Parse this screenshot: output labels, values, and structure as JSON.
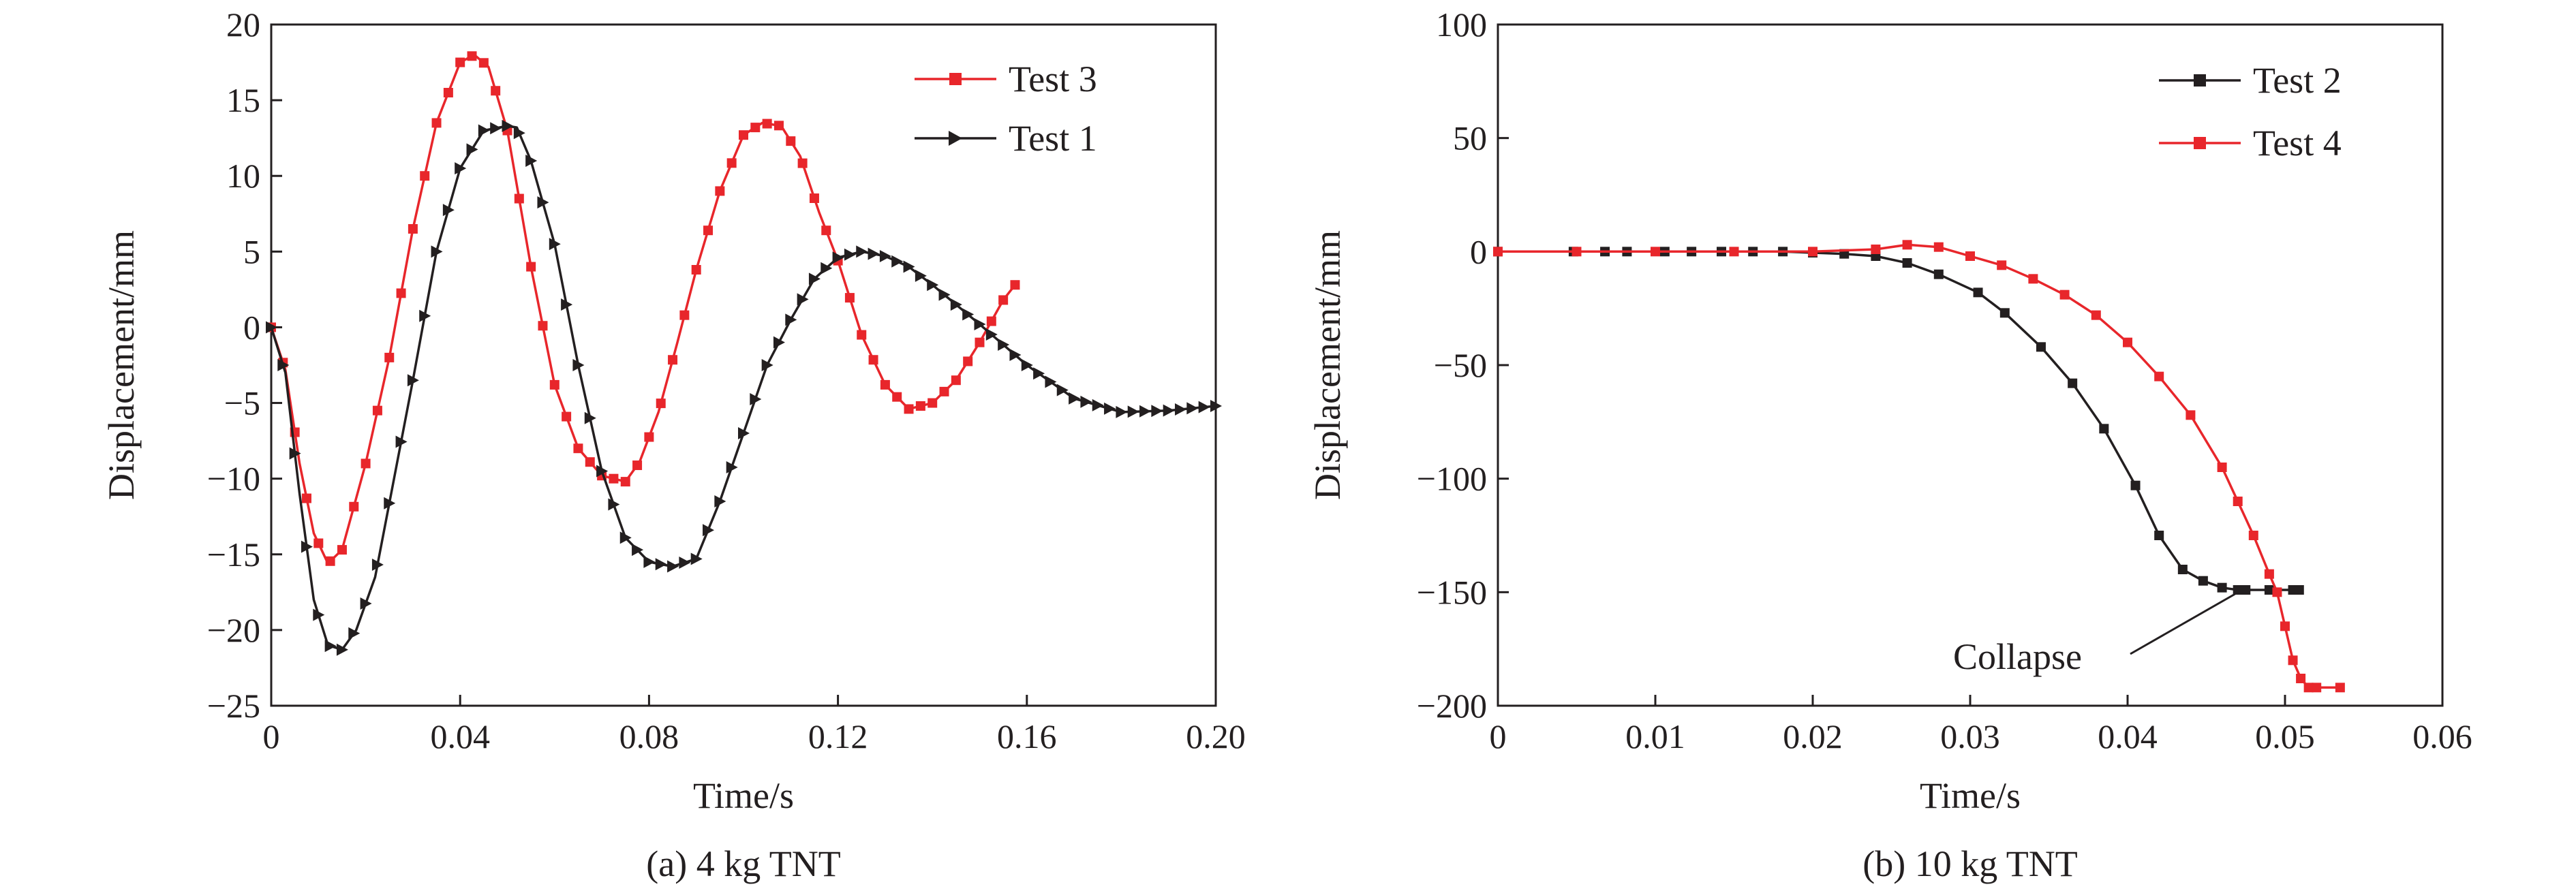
{
  "chart_data": [
    {
      "type": "line",
      "title": "",
      "caption": "(a) 4 kg TNT",
      "xlabel": "Time/s",
      "ylabel": "Displacement/mm",
      "xlim": [
        0,
        0.2
      ],
      "ylim": [
        -25,
        20
      ],
      "x_ticks": [
        0,
        0.04,
        0.08,
        0.12,
        0.16,
        0.2
      ],
      "x_tick_labels": [
        "0",
        "0.04",
        "0.08",
        "0.12",
        "0.16",
        "0.20"
      ],
      "y_ticks": [
        20,
        15,
        10,
        5,
        0,
        -5,
        -10,
        -15,
        -20,
        -25
      ],
      "y_tick_labels": [
        "20",
        "15",
        "10",
        "5",
        "0",
        "−5",
        "−10",
        "−15",
        "−20",
        "−25"
      ],
      "grid": false,
      "legend_position": "top-right",
      "series": [
        {
          "name": "Test 3",
          "color": "#e8262b",
          "marker": "square",
          "x": [
            0,
            0.003,
            0.006,
            0.009,
            0.012,
            0.015,
            0.02,
            0.025,
            0.03,
            0.035,
            0.04,
            0.043,
            0.046,
            0.05,
            0.055,
            0.06,
            0.065,
            0.07,
            0.075,
            0.078,
            0.082,
            0.086,
            0.09,
            0.095,
            0.1,
            0.104,
            0.108,
            0.112,
            0.116,
            0.12,
            0.125,
            0.13,
            0.135,
            0.14,
            0.145,
            0.15,
            0.155,
            0.158
          ],
          "y": [
            0,
            -2.8,
            -9,
            -13.6,
            -15.6,
            -14.7,
            -9,
            -2,
            6.5,
            13.5,
            17.5,
            18,
            17.2,
            13,
            4,
            -3.8,
            -8,
            -9.8,
            -10.2,
            -8.9,
            -5.6,
            -1,
            3.8,
            9,
            12.7,
            13.5,
            13.3,
            11.3,
            7.6,
            4.4,
            -0.5,
            -3.8,
            -5.4,
            -5,
            -3.5,
            -1,
            1.8,
            3
          ]
        },
        {
          "name": "Test 1",
          "color": "#231f20",
          "marker": "triangle-right",
          "x": [
            0,
            0.003,
            0.006,
            0.009,
            0.012,
            0.015,
            0.018,
            0.022,
            0.026,
            0.03,
            0.035,
            0.04,
            0.045,
            0.05,
            0.052,
            0.055,
            0.06,
            0.065,
            0.07,
            0.075,
            0.08,
            0.085,
            0.09,
            0.095,
            0.1,
            0.105,
            0.11,
            0.115,
            0.12,
            0.125,
            0.13,
            0.135,
            0.14,
            0.15,
            0.16,
            0.17,
            0.18,
            0.19,
            0.2
          ],
          "y": [
            0,
            -3,
            -11,
            -18,
            -21,
            -21.3,
            -20,
            -16.5,
            -10,
            -3.5,
            5,
            10.5,
            13,
            13.3,
            13.2,
            11,
            5.5,
            -2.5,
            -9.5,
            -13.9,
            -15.5,
            -15.8,
            -15.3,
            -11.5,
            -7,
            -2.5,
            0.5,
            3.2,
            4.6,
            5,
            4.7,
            4,
            2.8,
            0.2,
            -2.5,
            -4.7,
            -5.6,
            -5.5,
            -5.2
          ]
        }
      ]
    },
    {
      "type": "line",
      "title": "",
      "caption": "(b) 10 kg TNT",
      "xlabel": "Time/s",
      "ylabel": "Displacement/mm",
      "xlim": [
        0,
        0.06
      ],
      "ylim": [
        -200,
        100
      ],
      "x_ticks": [
        0,
        0.01,
        0.02,
        0.03,
        0.04,
        0.05,
        0.06
      ],
      "x_tick_labels": [
        "0",
        "0.01",
        "0.02",
        "0.03",
        "0.04",
        "0.05",
        "0.06"
      ],
      "y_ticks": [
        100,
        50,
        0,
        -50,
        -100,
        -150,
        -200
      ],
      "y_tick_labels": [
        "100",
        "50",
        "0",
        "−50",
        "−100",
        "−150",
        "−200"
      ],
      "grid": false,
      "legend_position": "top-right",
      "annotations": [
        {
          "text": "Collapse",
          "target_x": 0.047,
          "target_y": -149
        }
      ],
      "series": [
        {
          "name": "Test 2",
          "color": "#231f20",
          "marker": "square",
          "x": [
            0,
            0.0048,
            0.0068,
            0.0082,
            0.0106,
            0.0123,
            0.0142,
            0.0162,
            0.0181,
            0.02,
            0.022,
            0.024,
            0.026,
            0.028,
            0.0305,
            0.0322,
            0.0345,
            0.0365,
            0.0385,
            0.0405,
            0.042,
            0.0435,
            0.0448,
            0.046,
            0.047,
            0.0475,
            0.049,
            0.0505,
            0.0509
          ],
          "y": [
            0,
            0,
            0,
            0,
            0,
            0,
            0,
            0,
            0,
            -0.5,
            -1,
            -2,
            -5,
            -10,
            -18,
            -27,
            -42,
            -58,
            -78,
            -103,
            -125,
            -140,
            -145,
            -148,
            -149,
            -149,
            -149,
            -149,
            -149
          ]
        },
        {
          "name": "Test 4",
          "color": "#e8262b",
          "marker": "square",
          "x": [
            0,
            0.005,
            0.01,
            0.015,
            0.02,
            0.024,
            0.026,
            0.028,
            0.03,
            0.032,
            0.034,
            0.036,
            0.038,
            0.04,
            0.042,
            0.044,
            0.046,
            0.047,
            0.048,
            0.049,
            0.0495,
            0.05,
            0.0505,
            0.051,
            0.0515,
            0.052,
            0.0535
          ],
          "y": [
            0,
            0,
            0,
            0,
            0,
            1,
            3,
            2,
            -2,
            -6,
            -12,
            -19,
            -28,
            -40,
            -55,
            -72,
            -95,
            -110,
            -125,
            -142,
            -150,
            -165,
            -180,
            -188,
            -192,
            -192,
            -192
          ]
        }
      ]
    }
  ]
}
